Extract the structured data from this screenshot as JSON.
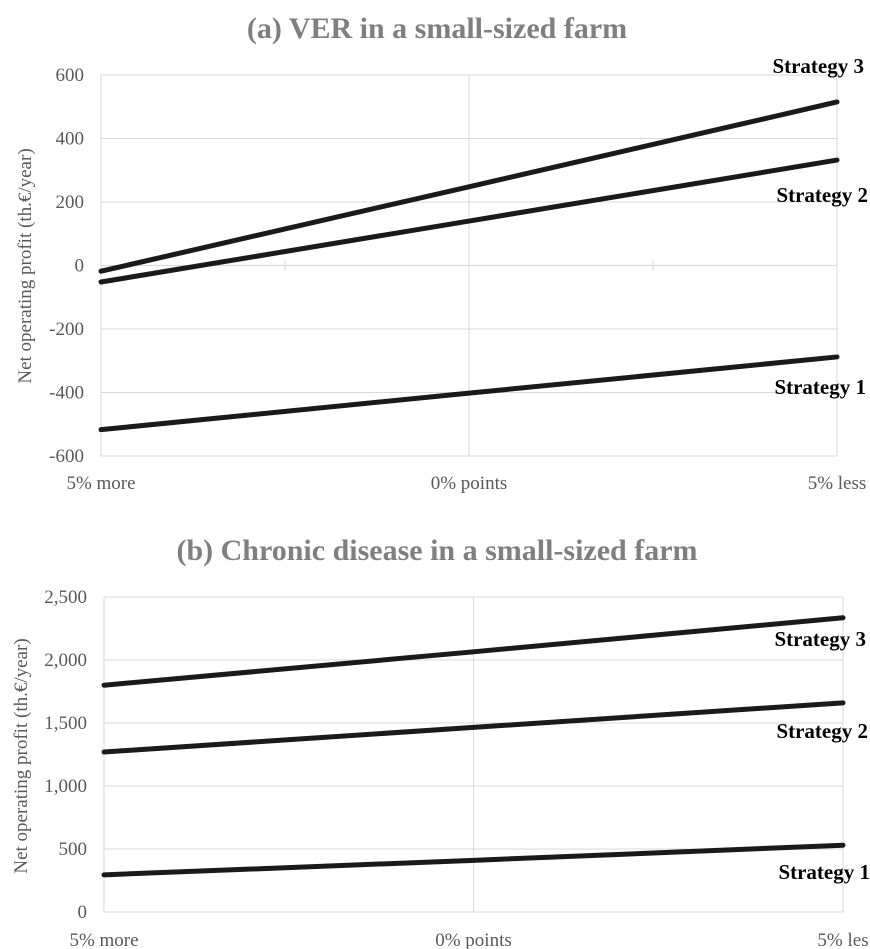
{
  "colors": {
    "line": "#1a1a1a",
    "grid": "#d9d9d9",
    "title": "#7f7f7f",
    "text": "#595959"
  },
  "chart_data": [
    {
      "type": "line",
      "title": "(a) VER in a small-sized farm",
      "ylabel": "Net operating profit (th.€/year)",
      "xlabel": "",
      "categories": [
        "5% more",
        "0% points",
        "5% less"
      ],
      "ylim": [
        -600,
        600
      ],
      "yticks": [
        -600,
        -400,
        -200,
        0,
        200,
        400,
        600
      ],
      "ytick_labels": [
        "-600",
        "-400",
        "-200",
        "0",
        "200",
        "400",
        "600"
      ],
      "grid": true,
      "series": [
        {
          "name": "Strategy 3",
          "values": [
            -18,
            248,
            515
          ]
        },
        {
          "name": "Strategy 2",
          "values": [
            -52,
            140,
            332
          ]
        },
        {
          "name": "Strategy 1",
          "values": [
            -517,
            -402,
            -288
          ]
        }
      ]
    },
    {
      "type": "line",
      "title": "(b) Chronic disease in a small-sized farm",
      "ylabel": "Net operating profit (th.€/year)",
      "xlabel": "",
      "categories": [
        "5% more",
        "0% points",
        "5% les"
      ],
      "ylim": [
        0,
        2500
      ],
      "yticks": [
        0,
        500,
        1000,
        1500,
        2000,
        2500
      ],
      "ytick_labels": [
        "0",
        "500",
        "1,000",
        "1,500",
        "2,000",
        "2,500"
      ],
      "grid": true,
      "series": [
        {
          "name": "Strategy 3",
          "values": [
            1800,
            2065,
            2335
          ]
        },
        {
          "name": "Strategy 2",
          "values": [
            1270,
            1465,
            1660
          ]
        },
        {
          "name": "Strategy 1",
          "values": [
            295,
            410,
            530
          ]
        }
      ]
    }
  ]
}
